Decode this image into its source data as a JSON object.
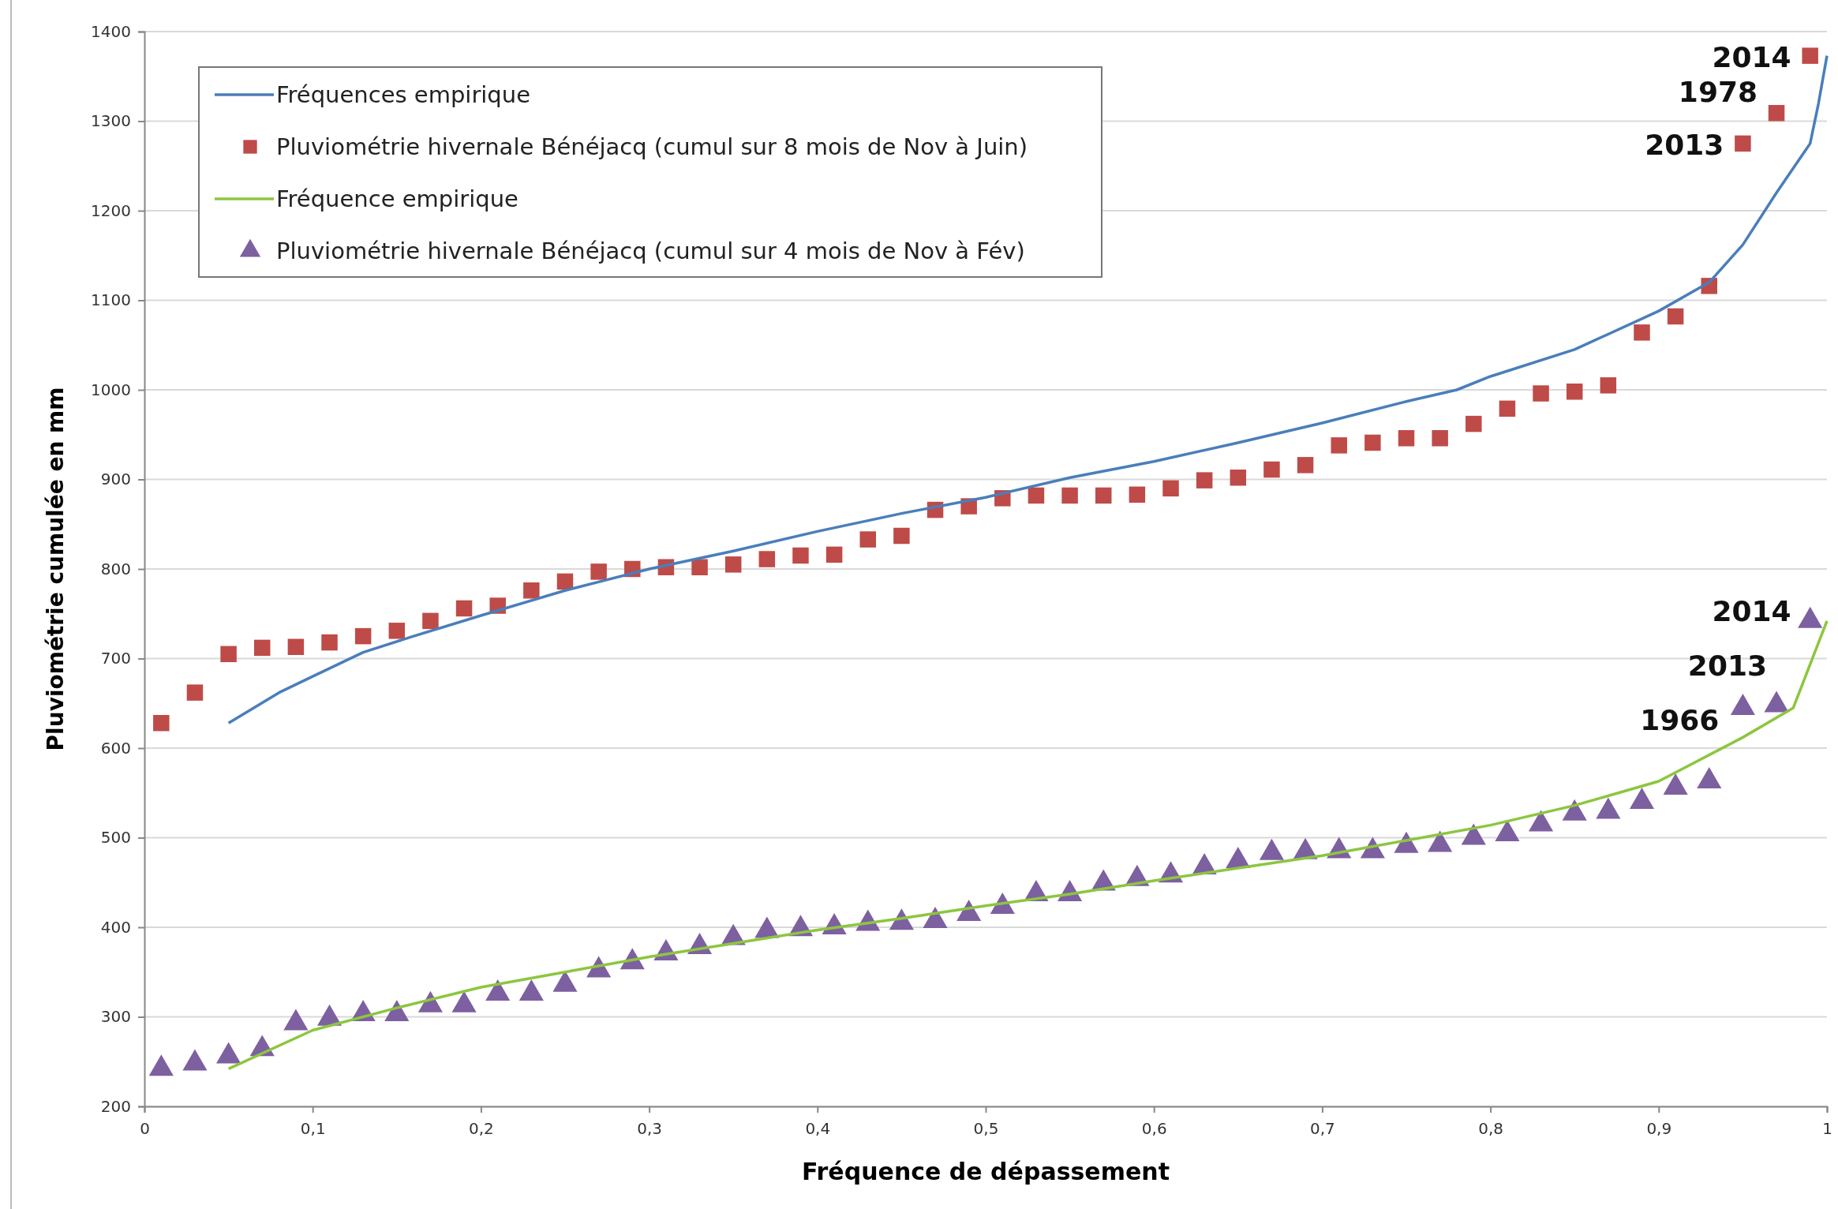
{
  "chart_data": {
    "type": "scatter",
    "xlabel": "Fréquence de dépassement",
    "ylabel": "Pluviométrie cumulée en mm",
    "xlim": [
      0,
      1
    ],
    "xticks": [
      0,
      {
        "value": 0.1,
        "label": "0,1"
      },
      {
        "value": 0.2,
        "label": "0,2"
      },
      {
        "value": 0.3,
        "label": "0,3"
      },
      {
        "value": 0.4,
        "label": "0,4"
      },
      {
        "value": 0.5,
        "label": "0,5"
      },
      {
        "value": 0.6,
        "label": "0,6"
      },
      {
        "value": 0.7,
        "label": "0,7"
      },
      {
        "value": 0.8,
        "label": "0,8"
      },
      {
        "value": 0.9,
        "label": "0,9"
      },
      1
    ],
    "ylim": [
      200,
      1400
    ],
    "yticks": [
      200,
      300,
      400,
      500,
      600,
      700,
      800,
      900,
      1000,
      1100,
      1200,
      1300,
      1400
    ],
    "grid": "y",
    "legend": "top left",
    "series": [
      {
        "name": "Fréquences empirique",
        "type": "line",
        "marker": "none",
        "color": "#4a7ebb",
        "x": [
          0.05,
          0.08,
          0.1,
          0.13,
          0.16,
          0.2,
          0.25,
          0.3,
          0.35,
          0.4,
          0.45,
          0.5,
          0.55,
          0.6,
          0.65,
          0.7,
          0.75,
          0.78,
          0.8,
          0.85,
          0.9,
          0.93,
          0.95,
          0.97,
          0.99,
          0.995,
          1
        ],
        "values": [
          628,
          662,
          680,
          707,
          725,
          748,
          776,
          800,
          820,
          842,
          862,
          880,
          902,
          920,
          941,
          963,
          987,
          1000,
          1015,
          1045,
          1088,
          1120,
          1162,
          1220,
          1275,
          1320,
          1373
        ]
      },
      {
        "name": "Pluviométrie hivernale Bénéjacq (cumul sur 8 mois de Nov à Juin)",
        "marker": "square",
        "color": "#be4b48",
        "x": [
          0.01,
          0.03,
          0.05,
          0.07,
          0.09,
          0.11,
          0.13,
          0.15,
          0.17,
          0.19,
          0.21,
          0.23,
          0.25,
          0.27,
          0.29,
          0.31,
          0.33,
          0.35,
          0.37,
          0.39,
          0.41,
          0.43,
          0.45,
          0.47,
          0.49,
          0.51,
          0.53,
          0.55,
          0.57,
          0.59,
          0.61,
          0.63,
          0.65,
          0.67,
          0.69,
          0.71,
          0.73,
          0.75,
          0.77,
          0.79,
          0.81,
          0.83,
          0.85,
          0.87,
          0.89,
          0.91,
          0.93,
          0.95,
          0.97,
          0.99
        ],
        "values": [
          628,
          662,
          705,
          712,
          713,
          718,
          725,
          731,
          742,
          756,
          759,
          776,
          786,
          797,
          800,
          802,
          802,
          805,
          811,
          815,
          816,
          833,
          837,
          866,
          870,
          879,
          882,
          882,
          882,
          883,
          890,
          899,
          902,
          911,
          916,
          938,
          941,
          946,
          946,
          962,
          979,
          996,
          998,
          1005,
          1064,
          1082,
          1116,
          1275,
          1309,
          1373
        ]
      },
      {
        "name": "Fréquence empirique",
        "type": "line",
        "marker": "none",
        "color": "#8cc63f",
        "x": [
          0.05,
          0.1,
          0.15,
          0.2,
          0.25,
          0.3,
          0.35,
          0.4,
          0.45,
          0.5,
          0.55,
          0.6,
          0.65,
          0.7,
          0.75,
          0.8,
          0.85,
          0.9,
          0.95,
          0.98,
          1
        ],
        "values": [
          242,
          285,
          310,
          333,
          350,
          367,
          382,
          397,
          410,
          424,
          437,
          452,
          466,
          480,
          497,
          514,
          536,
          563,
          612,
          645,
          742
        ]
      },
      {
        "name": "Pluviométrie hivernale Bénéjacq (cumul sur 4 mois de Nov à Fév)",
        "marker": "triangle",
        "color": "#7d60a0",
        "x": [
          0.01,
          0.03,
          0.05,
          0.07,
          0.09,
          0.11,
          0.13,
          0.15,
          0.17,
          0.19,
          0.21,
          0.23,
          0.25,
          0.27,
          0.29,
          0.31,
          0.33,
          0.35,
          0.37,
          0.39,
          0.41,
          0.43,
          0.45,
          0.47,
          0.49,
          0.51,
          0.53,
          0.55,
          0.57,
          0.59,
          0.61,
          0.63,
          0.65,
          0.67,
          0.69,
          0.71,
          0.73,
          0.75,
          0.77,
          0.79,
          0.81,
          0.83,
          0.85,
          0.87,
          0.89,
          0.91,
          0.93,
          0.95,
          0.97,
          0.99
        ],
        "values": [
          242,
          248,
          256,
          264,
          293,
          298,
          303,
          303,
          313,
          313,
          326,
          326,
          336,
          352,
          361,
          371,
          378,
          388,
          396,
          398,
          400,
          404,
          405,
          407,
          415,
          423,
          437,
          437,
          449,
          454,
          458,
          467,
          474,
          483,
          484,
          485,
          485,
          491,
          492,
          500,
          504,
          515,
          527,
          529,
          540,
          556,
          563,
          645,
          648,
          742
        ]
      }
    ],
    "annotations": [
      {
        "text": "2014",
        "x": 0.99,
        "y": 1373
      },
      {
        "text": "1978",
        "x": 0.97,
        "y": 1309
      },
      {
        "text": "2013",
        "x": 0.95,
        "y": 1275
      },
      {
        "text": "2014",
        "x": 0.99,
        "y": 742
      },
      {
        "text": "2013",
        "x": 0.97,
        "y": 648
      },
      {
        "text": "1966",
        "x": 0.95,
        "y": 645
      }
    ]
  }
}
